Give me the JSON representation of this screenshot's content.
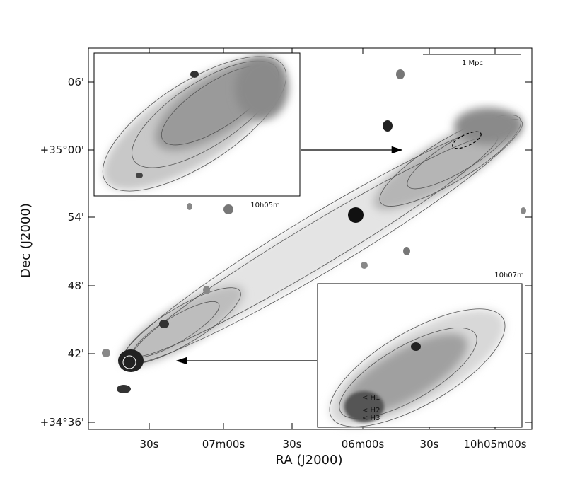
{
  "axes": {
    "x_label": "RA (J2000)",
    "y_label": "Dec (J2000)",
    "x_ticks": [
      "30s",
      "07m00s",
      "30s",
      "06m00s",
      "30s",
      "10h05m00s"
    ],
    "y_ticks": [
      "06'",
      "+35°00'",
      "54'",
      "48'",
      "42'",
      "+34°36'"
    ]
  },
  "scale_bar": "1 Mpc",
  "insets": [
    {
      "label": "10h05m"
    },
    {
      "label": "10h07m",
      "markers": [
        "< H1",
        "< H2",
        "< H3"
      ]
    }
  ]
}
